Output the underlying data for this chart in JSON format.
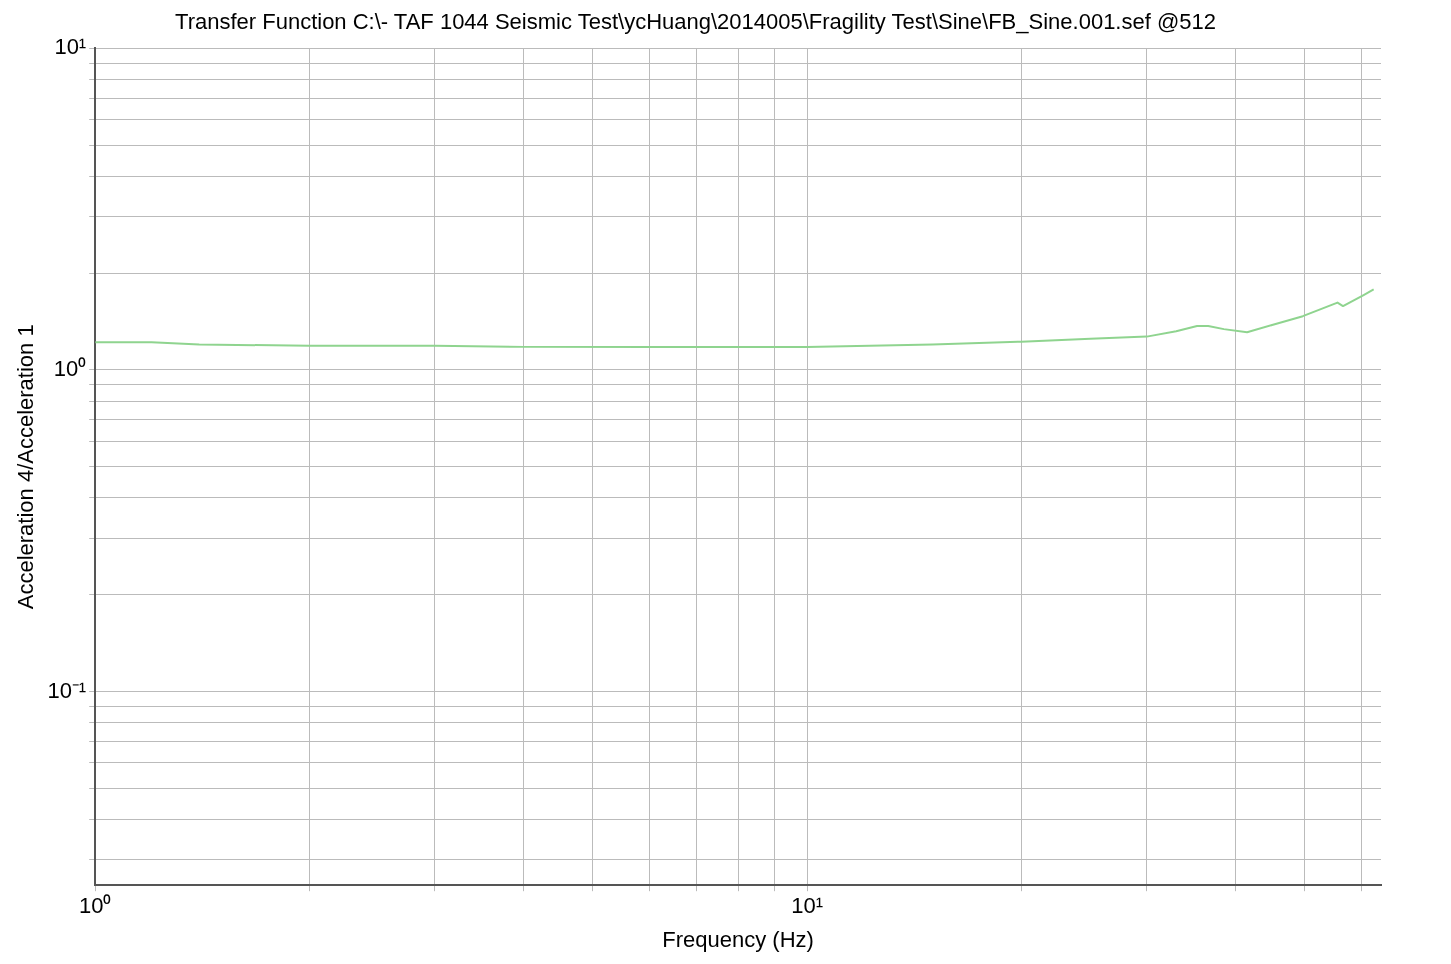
{
  "chart_data": {
    "type": "line",
    "title": "Transfer Function C:\\- TAF 1044 Seismic Test\\ycHuang\\2014005\\Fragility Test\\Sine\\FB_Sine.001.sef @512",
    "xlabel": "Frequency (Hz)",
    "ylabel": "Acceleration 4/Acceleration 1",
    "log": "xy",
    "grid": true,
    "legend": false,
    "marker": "none",
    "line_style": "solid",
    "xlim": [
      1,
      64
    ],
    "ylim": [
      0.025,
      10
    ],
    "xticks": [
      {
        "value": 1,
        "label": "10⁰"
      },
      {
        "value": 2,
        "label": null
      },
      {
        "value": 3,
        "label": null
      },
      {
        "value": 4,
        "label": null
      },
      {
        "value": 5,
        "label": null
      },
      {
        "value": 6,
        "label": null
      },
      {
        "value": 7,
        "label": null
      },
      {
        "value": 8,
        "label": null
      },
      {
        "value": 9,
        "label": null
      },
      {
        "value": 10,
        "label": "10¹"
      },
      {
        "value": 20,
        "label": null
      },
      {
        "value": 30,
        "label": null
      },
      {
        "value": 40,
        "label": null
      },
      {
        "value": 50,
        "label": null
      },
      {
        "value": 60,
        "label": null
      }
    ],
    "yticks": [
      {
        "value": 0.03,
        "label": null
      },
      {
        "value": 0.04,
        "label": null
      },
      {
        "value": 0.05,
        "label": null
      },
      {
        "value": 0.06,
        "label": null
      },
      {
        "value": 0.07,
        "label": null
      },
      {
        "value": 0.08,
        "label": null
      },
      {
        "value": 0.09,
        "label": null
      },
      {
        "value": 0.1,
        "label": "10⁻¹"
      },
      {
        "value": 0.2,
        "label": null
      },
      {
        "value": 0.3,
        "label": null
      },
      {
        "value": 0.4,
        "label": null
      },
      {
        "value": 0.5,
        "label": null
      },
      {
        "value": 0.6,
        "label": null
      },
      {
        "value": 0.7,
        "label": null
      },
      {
        "value": 0.8,
        "label": null
      },
      {
        "value": 0.9,
        "label": null
      },
      {
        "value": 1,
        "label": "10⁰"
      },
      {
        "value": 2,
        "label": null
      },
      {
        "value": 3,
        "label": null
      },
      {
        "value": 4,
        "label": null
      },
      {
        "value": 5,
        "label": null
      },
      {
        "value": 6,
        "label": null
      },
      {
        "value": 7,
        "label": null
      },
      {
        "value": 8,
        "label": null
      },
      {
        "value": 9,
        "label": null
      },
      {
        "value": 10,
        "label": "10¹"
      }
    ],
    "series": [
      {
        "color": "#8fd48f",
        "x": [
          1,
          1.2,
          1.4,
          2,
          3,
          4,
          6,
          10,
          15,
          20,
          25,
          30,
          33,
          35.3,
          36.6,
          38.5,
          41.5,
          45,
          49.7,
          55.6,
          56.6,
          60.5,
          62.5
        ],
        "values": [
          1.22,
          1.22,
          1.2,
          1.19,
          1.19,
          1.18,
          1.18,
          1.18,
          1.2,
          1.225,
          1.25,
          1.27,
          1.32,
          1.37,
          1.37,
          1.34,
          1.31,
          1.38,
          1.47,
          1.62,
          1.58,
          1.71,
          1.78
        ]
      }
    ]
  }
}
